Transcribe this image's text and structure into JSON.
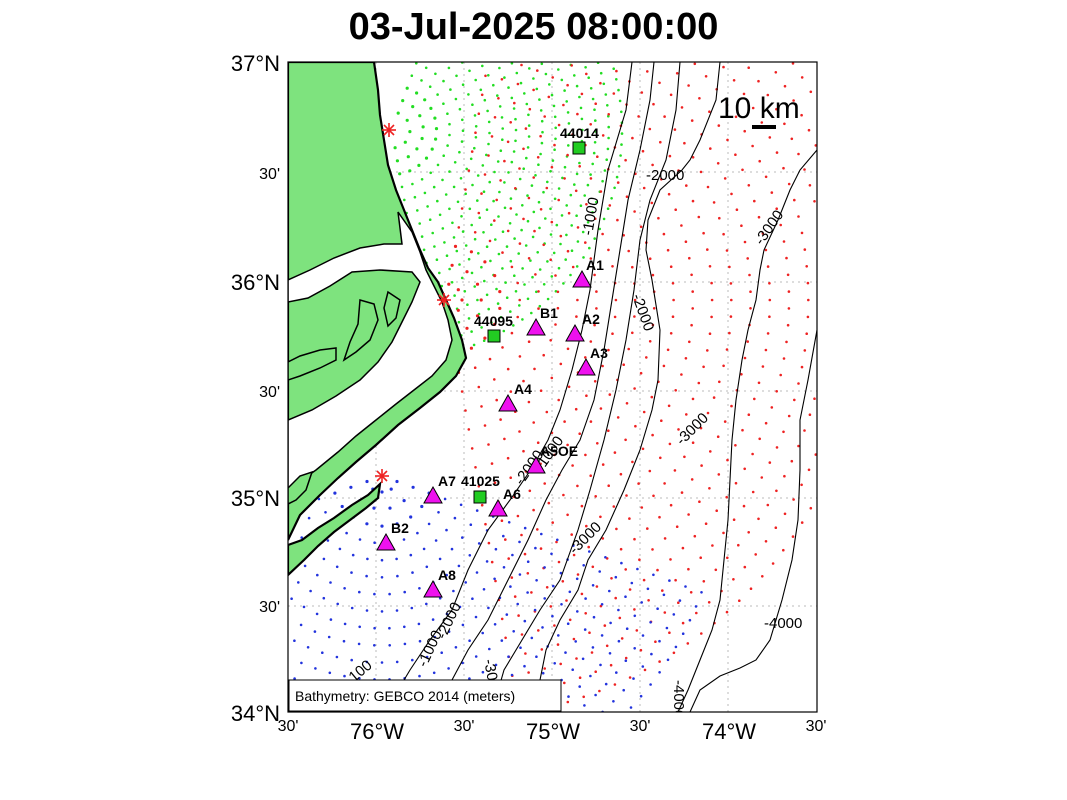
{
  "title": "03-Jul-2025 08:00:00",
  "colors": {
    "land": "#7ee37e",
    "coast": "#000000",
    "sector_north": "#22dd22",
    "sector_middle": "#ee2222",
    "sector_south": "#2233dd",
    "mooring": "#ee11ee",
    "buoy": "#22cc22",
    "site_marker": "#ee2222"
  },
  "axes": {
    "lon_range": [
      "76.5°W",
      "74°W"
    ],
    "lat_range": [
      "34°N",
      "37°N"
    ],
    "lat_ticks": [
      "37°N",
      "30'",
      "36°N",
      "30'",
      "35°N",
      "30'",
      "34°N"
    ],
    "lon_ticks": [
      "30'",
      "76°W",
      "30'",
      "75°W",
      "30'",
      "74°W",
      "30'"
    ],
    "grid": true
  },
  "scale_bar": {
    "label": "10 km"
  },
  "legend": {
    "text": "Bathymetry: GEBCO 2014 (meters)"
  },
  "contour_labels": [
    "-1000",
    "-2000",
    "-2000",
    "-3000",
    "-3000",
    "-3000",
    "-2000",
    "-1000",
    "-1000",
    "-2000",
    "-3000",
    "-4000",
    "-4000",
    "-100"
  ],
  "moorings": [
    {
      "name": "A1"
    },
    {
      "name": "A2"
    },
    {
      "name": "A3"
    },
    {
      "name": "B1"
    },
    {
      "name": "A4"
    },
    {
      "name": "A5OE"
    },
    {
      "name": "A6"
    },
    {
      "name": "A7"
    },
    {
      "name": "B2"
    },
    {
      "name": "A8"
    }
  ],
  "buoys": [
    {
      "name": "44014"
    },
    {
      "name": "44095"
    },
    {
      "name": "41025"
    }
  ],
  "icon": {
    "mooring": "triangle-icon",
    "buoy": "square-icon",
    "site": "star-icon"
  }
}
